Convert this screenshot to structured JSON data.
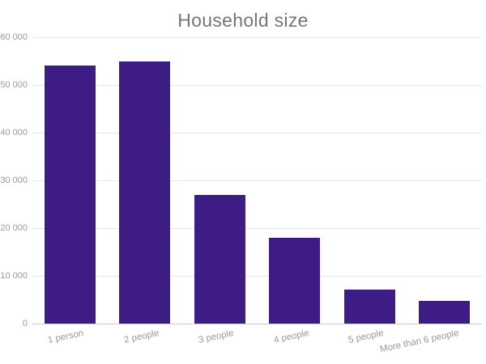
{
  "title": "Household size",
  "chart_data": {
    "type": "bar",
    "title": "Household size",
    "categories": [
      "1 person",
      "2 people",
      "3 people",
      "4 people",
      "5 people",
      "More than 6 people"
    ],
    "values": [
      54000,
      55000,
      27000,
      18000,
      7200,
      4800
    ],
    "xlabel": "",
    "ylabel": "",
    "ylim": [
      0,
      60000
    ],
    "ytick_step": 10000,
    "ytick_labels": [
      "0",
      "10 000",
      "20 000",
      "30 000",
      "40 000",
      "50 000",
      "60 000"
    ],
    "grid": true,
    "legend": "none",
    "bar_color": "#3e1c86",
    "colors": {
      "title": "#757575",
      "tick_label": "#999999",
      "gridline": "#e6e6e6",
      "axis_line": "#c9c9c9",
      "background": "#ffffff"
    }
  }
}
